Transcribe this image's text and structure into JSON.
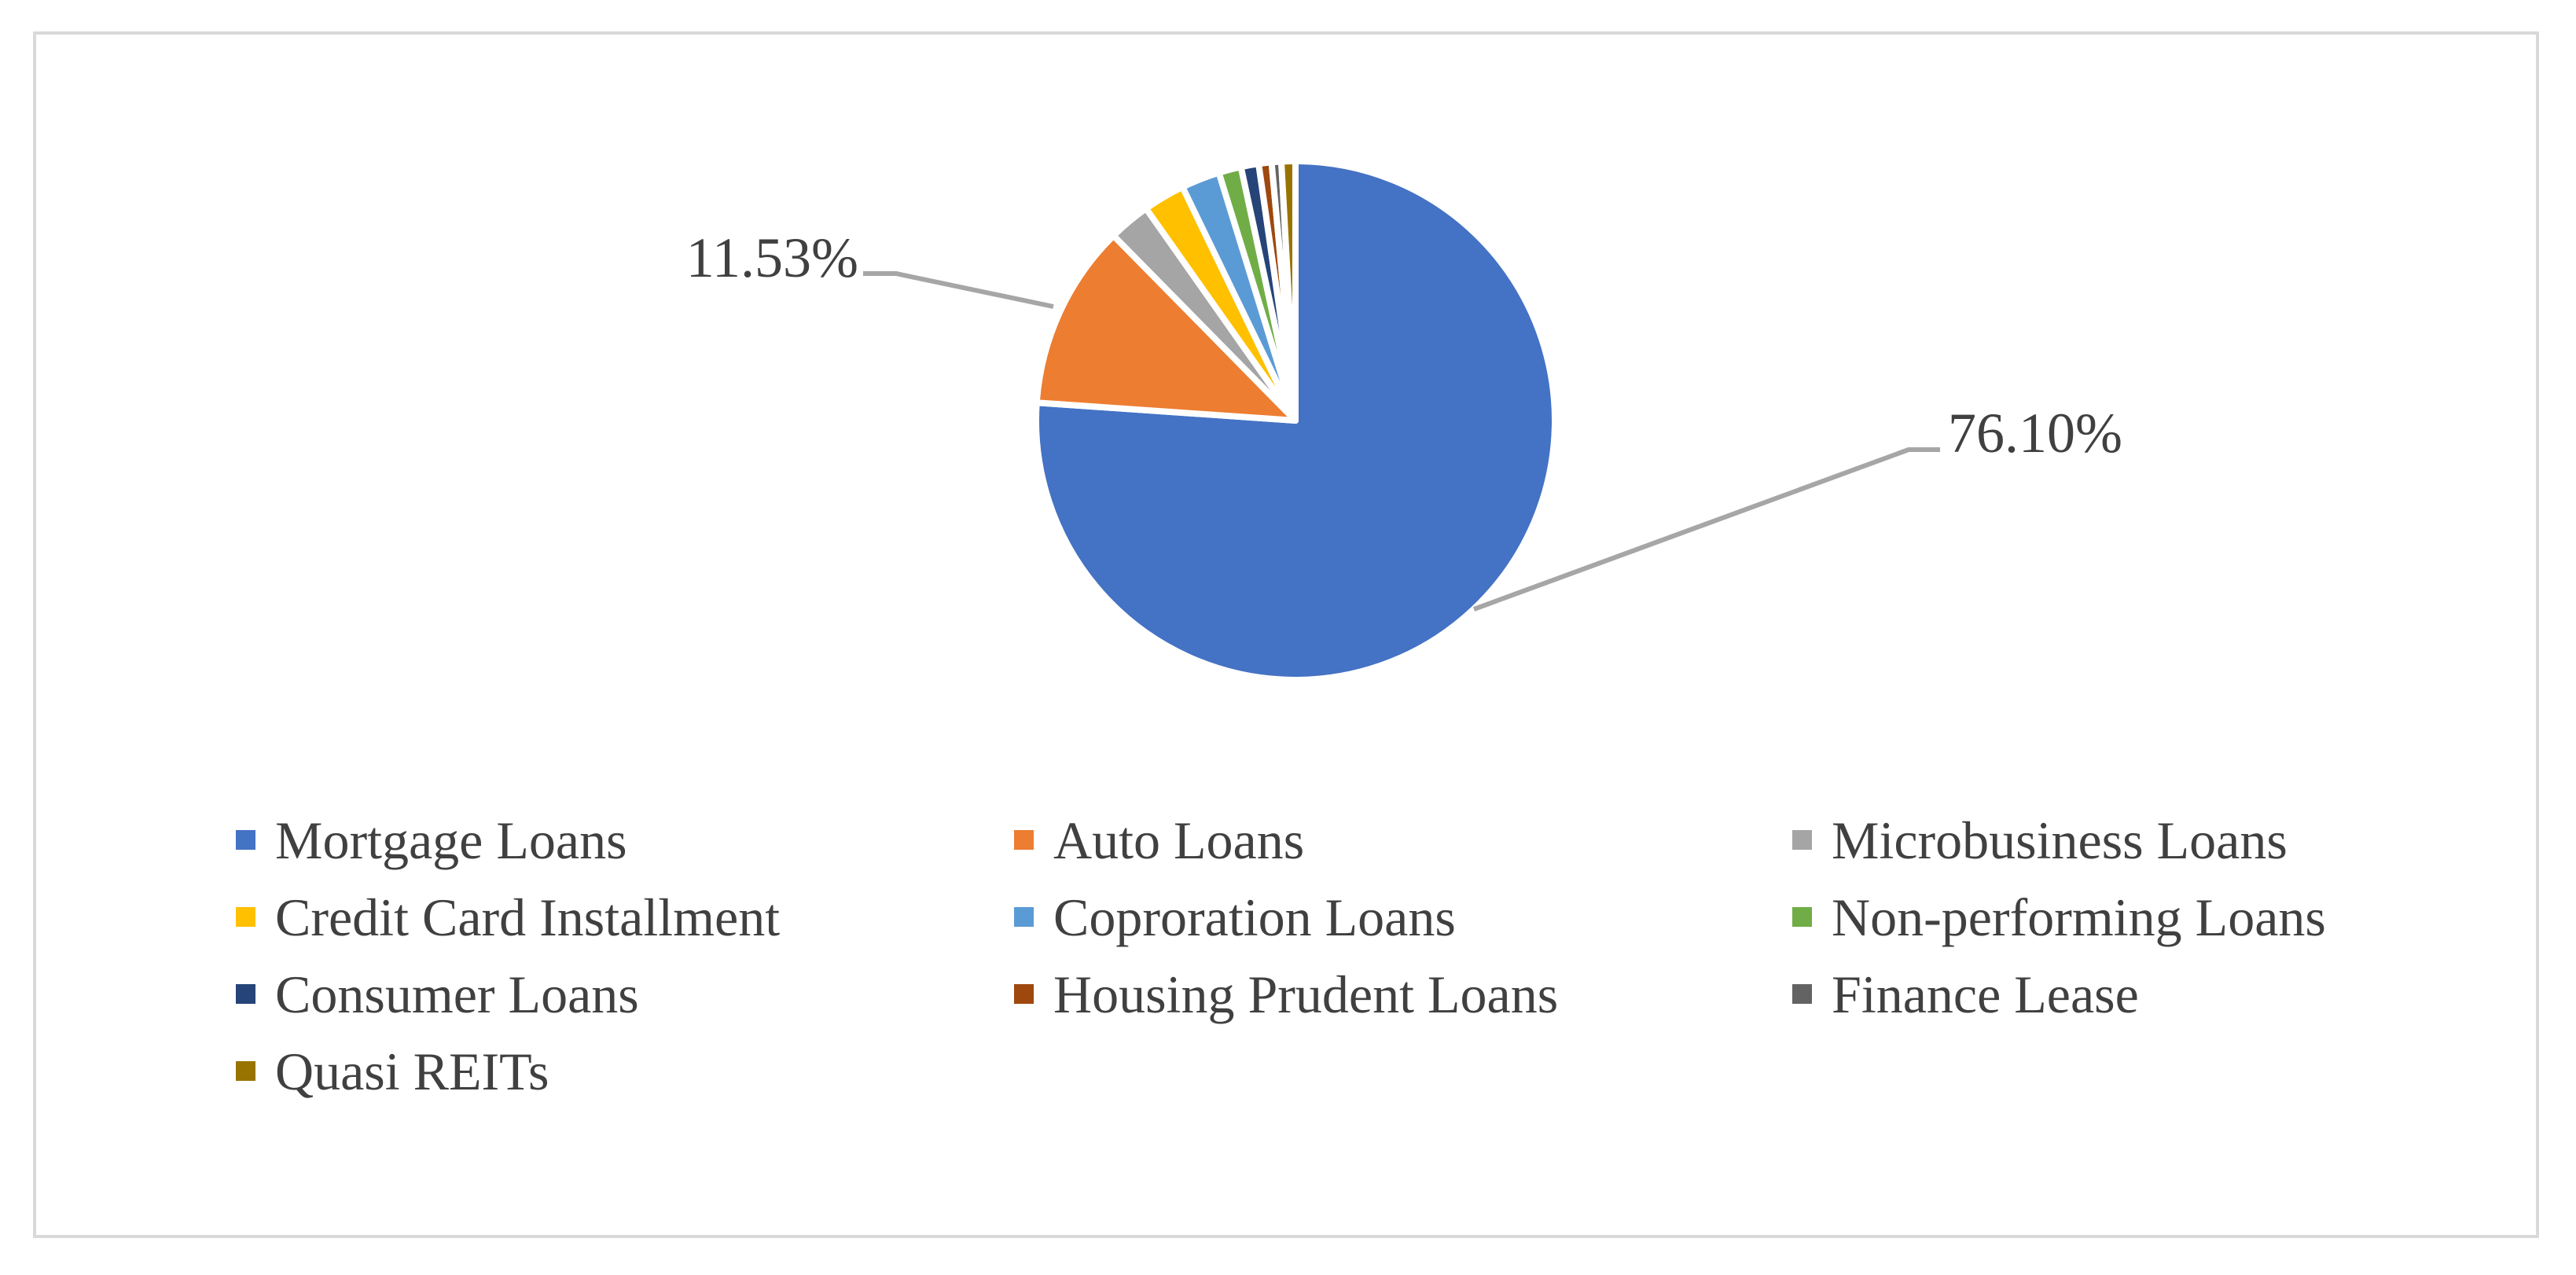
{
  "chart_data": {
    "type": "pie",
    "title": "",
    "start_angle_deg": 0,
    "direction": "clockwise",
    "legend_position": "bottom",
    "slices": [
      {
        "name": "Mortgage Loans",
        "value": 76.1,
        "color": "#4472C4",
        "label": "76.10%"
      },
      {
        "name": "Auto Loans",
        "value": 11.53,
        "color": "#ED7D31",
        "label": "11.53%"
      },
      {
        "name": "Microbusiness Loans",
        "value": 2.6,
        "color": "#A5A5A5",
        "label": ""
      },
      {
        "name": "Credit Card Installment",
        "value": 2.6,
        "color": "#FFC000",
        "label": ""
      },
      {
        "name": "Coproration Loans",
        "value": 2.4,
        "color": "#5B9BD5",
        "label": ""
      },
      {
        "name": "Non-performing Loans",
        "value": 1.4,
        "color": "#70AD47",
        "label": ""
      },
      {
        "name": "Consumer Loans",
        "value": 1.1,
        "color": "#264478",
        "label": ""
      },
      {
        "name": "Housing Prudent Loans",
        "value": 0.8,
        "color": "#9E480E",
        "label": ""
      },
      {
        "name": "Finance Lease",
        "value": 0.6,
        "color": "#636363",
        "label": ""
      },
      {
        "name": "Quasi REITs",
        "value": 0.87,
        "color": "#997300",
        "label": ""
      }
    ]
  }
}
